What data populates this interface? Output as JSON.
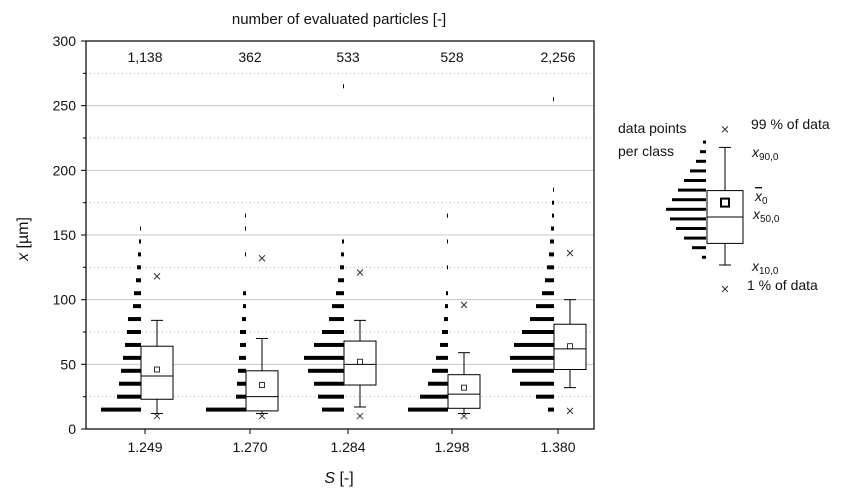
{
  "chart_data": {
    "type": "box",
    "top_title": "number of evaluated particles [-]",
    "xlabel_var": "S",
    "xlabel_unit": " [-]",
    "ylabel_var": "x",
    "ylabel_unit": " [µm]",
    "ylim": [
      0,
      300
    ],
    "yticks": [
      0,
      50,
      100,
      150,
      200,
      250,
      300
    ],
    "grid": "horizontal dotted minor, solid major",
    "categories": [
      "1.249",
      "1.270",
      "1.284",
      "1.298",
      "1.380"
    ],
    "counts": [
      "1,138",
      "362",
      "533",
      "528",
      "2,256"
    ],
    "boxes": [
      {
        "p1": 10,
        "p10": 12,
        "q1": 23,
        "median": 41,
        "mean": 46,
        "q3": 64,
        "p90": 84,
        "p99": 118
      },
      {
        "p1": 10,
        "p10": 12,
        "q1": 14,
        "median": 25,
        "mean": 34,
        "q3": 45,
        "p90": 70,
        "p99": 132
      },
      {
        "p1": 10,
        "p10": 17,
        "q1": 34,
        "median": 50,
        "mean": 52,
        "q3": 68,
        "p90": 84,
        "p99": 121
      },
      {
        "p1": 10,
        "p10": 12,
        "q1": 16,
        "median": 27,
        "mean": 32,
        "q3": 42,
        "p90": 59,
        "p99": 96
      },
      {
        "p1": 14,
        "p10": 32,
        "q1": 46,
        "median": 62,
        "mean": 64,
        "q3": 81,
        "p90": 100,
        "p99": 136
      }
    ],
    "class_counts": [
      {
        "bins": [
          15,
          25,
          35,
          45,
          55,
          65,
          75,
          85,
          95,
          105,
          115,
          125,
          135,
          145,
          155
        ],
        "widths": [
          40,
          24,
          22,
          20,
          18,
          16,
          14,
          13,
          8,
          7,
          5,
          4,
          3,
          2,
          1
        ]
      },
      {
        "bins": [
          15,
          25,
          35,
          45,
          55,
          65,
          75,
          85,
          95,
          105,
          135,
          155,
          165
        ],
        "widths": [
          40,
          10,
          9,
          8,
          7,
          6,
          6,
          4,
          3,
          3,
          1,
          1,
          1
        ]
      },
      {
        "bins": [
          15,
          25,
          35,
          45,
          55,
          65,
          75,
          85,
          95,
          105,
          115,
          125,
          135,
          145,
          265
        ],
        "widths": [
          22,
          26,
          30,
          36,
          40,
          30,
          22,
          15,
          12,
          8,
          6,
          4,
          3,
          2,
          1
        ]
      },
      {
        "bins": [
          15,
          25,
          35,
          45,
          55,
          65,
          75,
          85,
          95,
          105,
          125,
          145,
          165
        ],
        "widths": [
          40,
          28,
          20,
          16,
          12,
          8,
          6,
          4,
          3,
          2,
          1,
          1,
          1
        ]
      },
      {
        "bins": [
          15,
          25,
          35,
          45,
          55,
          65,
          75,
          85,
          95,
          105,
          115,
          125,
          135,
          145,
          155,
          165,
          175,
          185,
          255
        ],
        "widths": [
          6,
          18,
          34,
          42,
          44,
          40,
          32,
          24,
          18,
          12,
          9,
          7,
          5,
          4,
          3,
          2,
          2,
          1,
          1
        ]
      }
    ]
  },
  "legend": {
    "caption_line1": "data points",
    "caption_line2": "per class",
    "p99_label": "99 % of data",
    "p90_label_var": "x",
    "p90_label_sub": "90,0",
    "mean_label_var": "x",
    "mean_label_sub": "0",
    "median_label_var": "x",
    "median_label_sub": "50,0",
    "p10_label_var": "x",
    "p10_label_sub": "10,0",
    "p1_label": "1 % of data"
  }
}
